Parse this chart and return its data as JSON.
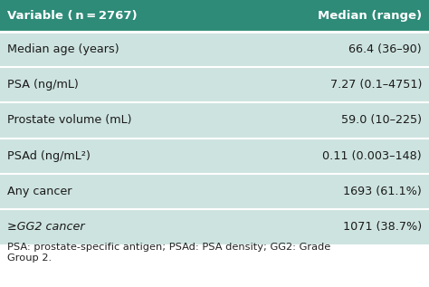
{
  "header_bg": "#2d8b78",
  "header_text_color": "#ffffff",
  "row_bg": "#cde3df",
  "separator_color": "#ffffff",
  "footer_text_color": "#222222",
  "col1_header": "Variable ( n = 2767)",
  "col2_header": "Median (range)",
  "rows": [
    [
      "Median age (years)",
      "66.4 (36–90)",
      false
    ],
    [
      "PSA (ng/mL)",
      "7.27 (0.1–4751)",
      false
    ],
    [
      "Prostate volume (mL)",
      "59.0 (10–225)",
      false
    ],
    [
      "PSAd (ng/mL²)",
      "0.11 (0.003–148)",
      false
    ],
    [
      "Any cancer",
      "1693 (61.1%)",
      false
    ],
    [
      "≥GG2 cancer",
      "1071 (38.7%)",
      true
    ]
  ],
  "footer_line1": "PSA: prostate-specific antigen; PSAd: PSA density; GG2: Grade",
  "footer_line2": "Group 2.",
  "header_fontsize": 9.5,
  "row_fontsize": 9.2,
  "footer_fontsize": 8.2,
  "fig_width": 4.74,
  "fig_height": 3.17,
  "dpi": 100
}
